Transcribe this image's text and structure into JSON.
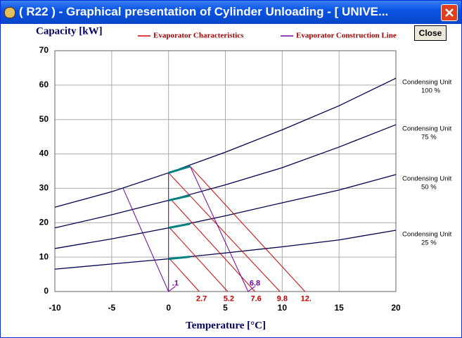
{
  "window": {
    "title": "( R22 ) - Graphical presentation of Cylinder Unloading - [ UNIVE...",
    "close_button": "Close"
  },
  "chart_data": {
    "type": "line",
    "y_label": "Capacity [kW]",
    "x_label": "Temperature [°C]",
    "xlim": [
      -10,
      20
    ],
    "ylim": [
      0,
      70
    ],
    "xticks": [
      -10,
      -5,
      0,
      5,
      10,
      15,
      20
    ],
    "yticks": [
      0,
      10,
      20,
      30,
      40,
      50,
      60,
      70
    ],
    "grid": true,
    "series": [
      {
        "name": "Condensing Unit",
        "sub": "100 %",
        "color": "#000050",
        "x": [
          -10,
          -5,
          0,
          5,
          10,
          15,
          20
        ],
        "values": [
          24.5,
          29,
          34.5,
          40.5,
          47,
          54,
          62
        ]
      },
      {
        "name": "Condensing Unit",
        "sub": "75 %",
        "color": "#000050",
        "x": [
          -10,
          -5,
          0,
          5,
          10,
          15,
          20
        ],
        "values": [
          18.5,
          22.3,
          26.5,
          31,
          36,
          42,
          48.5
        ]
      },
      {
        "name": "Condensing Unit",
        "sub": "50 %",
        "color": "#000050",
        "x": [
          -10,
          -5,
          0,
          5,
          10,
          15,
          20
        ],
        "values": [
          12.5,
          15.3,
          18.5,
          22,
          25.8,
          29.5,
          34
        ]
      },
      {
        "name": "Condensing Unit",
        "sub": "25 %",
        "color": "#000050",
        "x": [
          -10,
          -5,
          0,
          5,
          10,
          15,
          20
        ],
        "values": [
          6.5,
          8,
          9.5,
          11.2,
          13,
          15,
          17.8
        ]
      }
    ],
    "legend": [
      {
        "name": "Evaporator Characteristics",
        "color": "#d00000",
        "segments": [
          {
            "x": [
              1.9,
              12
            ],
            "values": [
              36.4,
              0
            ]
          },
          {
            "x": [
              0,
              9.8
            ],
            "values": [
              34.5,
              0
            ]
          },
          {
            "x": [
              0.2,
              7.6
            ],
            "values": [
              26.8,
              0
            ]
          },
          {
            "x": [
              0.1,
              5.2
            ],
            "values": [
              18.5,
              0
            ]
          },
          {
            "x": [
              0.1,
              2.7
            ],
            "values": [
              9.5,
              0
            ]
          }
        ]
      },
      {
        "name": "Evaporator Construction Line",
        "color": "#7000a0",
        "segments": [
          {
            "x": [
              -4,
              0
            ],
            "values": [
              30,
              0
            ]
          },
          {
            "x": [
              0,
              0.6
            ],
            "values": [
              0,
              1.5
            ]
          },
          {
            "x": [
              1.9,
              7
            ],
            "values": [
              36.4,
              0
            ]
          },
          {
            "x": [
              7,
              7.6
            ],
            "values": [
              0,
              1.5
            ]
          },
          {
            "x": [
              0,
              0
            ],
            "values": [
              0,
              34.5
            ]
          }
        ]
      }
    ],
    "highlights": [
      {
        "color": "#008080",
        "x": [
          0,
          1.9
        ],
        "values": [
          34.5,
          36.4
        ]
      },
      {
        "color": "#008080",
        "x": [
          0,
          1.9
        ],
        "values": [
          26.5,
          27.9
        ]
      },
      {
        "color": "#008080",
        "x": [
          0,
          1.9
        ],
        "values": [
          18.5,
          19.7
        ]
      },
      {
        "color": "#008080",
        "x": [
          0,
          1.9
        ],
        "values": [
          9.5,
          10.1
        ]
      }
    ],
    "annotations": [
      {
        "text": ".1",
        "x": 0.6,
        "y": 2.3,
        "color": "#7000a0"
      },
      {
        "text": "6.8",
        "x": 7.6,
        "y": 2.3,
        "color": "#7000a0"
      },
      {
        "text": "2.7",
        "x": 2.9,
        "y": -2.2,
        "color": "#c00000"
      },
      {
        "text": "5.2",
        "x": 5.3,
        "y": -2.2,
        "color": "#c00000"
      },
      {
        "text": "7.6",
        "x": 7.7,
        "y": -2.2,
        "color": "#c00000"
      },
      {
        "text": "9.8",
        "x": 10,
        "y": -2.2,
        "color": "#c00000"
      },
      {
        "text": "12.",
        "x": 12.1,
        "y": -2.2,
        "color": "#c00000"
      }
    ]
  }
}
